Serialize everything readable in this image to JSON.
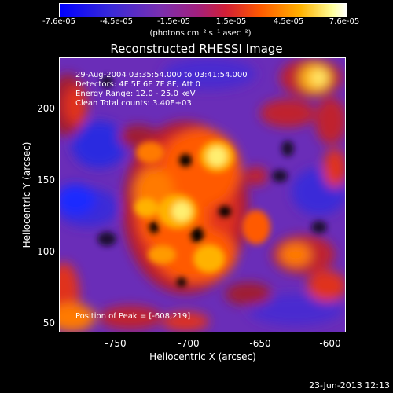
{
  "colorbar": {
    "ticks": [
      "-7.6e-05",
      "-4.5e-05",
      "-1.5e-05",
      "1.5e-05",
      "4.5e-05",
      "7.6e-05"
    ],
    "units": "(photons cm⁻² s⁻¹ asec⁻²)"
  },
  "title": "Reconstructed RHESSI Image",
  "annotations": {
    "time_range": "29-Aug-2004 03:35:54.000 to 03:41:54.000",
    "detectors": "Detectors: 4F 5F 6F 7F 8F, Att 0",
    "energy_range": "Energy Range: 12.0 - 25.0 keV",
    "method_counts": "Clean     Total counts: 3.40E+03",
    "peak_position": "Position of Peak = [-608,219]"
  },
  "axes": {
    "xlabel": "Heliocentric X (arcsec)",
    "ylabel": "Heliocentric Y (arcsec)",
    "xticks": [
      "-750",
      "-700",
      "-650",
      "-600"
    ],
    "yticks": [
      "200",
      "150",
      "100",
      "50"
    ]
  },
  "footer": {
    "timestamp": "23-Jun-2013 12:13"
  },
  "colors": {
    "min": "#0000ff",
    "mid_neg": "#6a2db8",
    "mid_pos": "#d21f35",
    "high": "#ffb200",
    "max": "#ffffff"
  }
}
